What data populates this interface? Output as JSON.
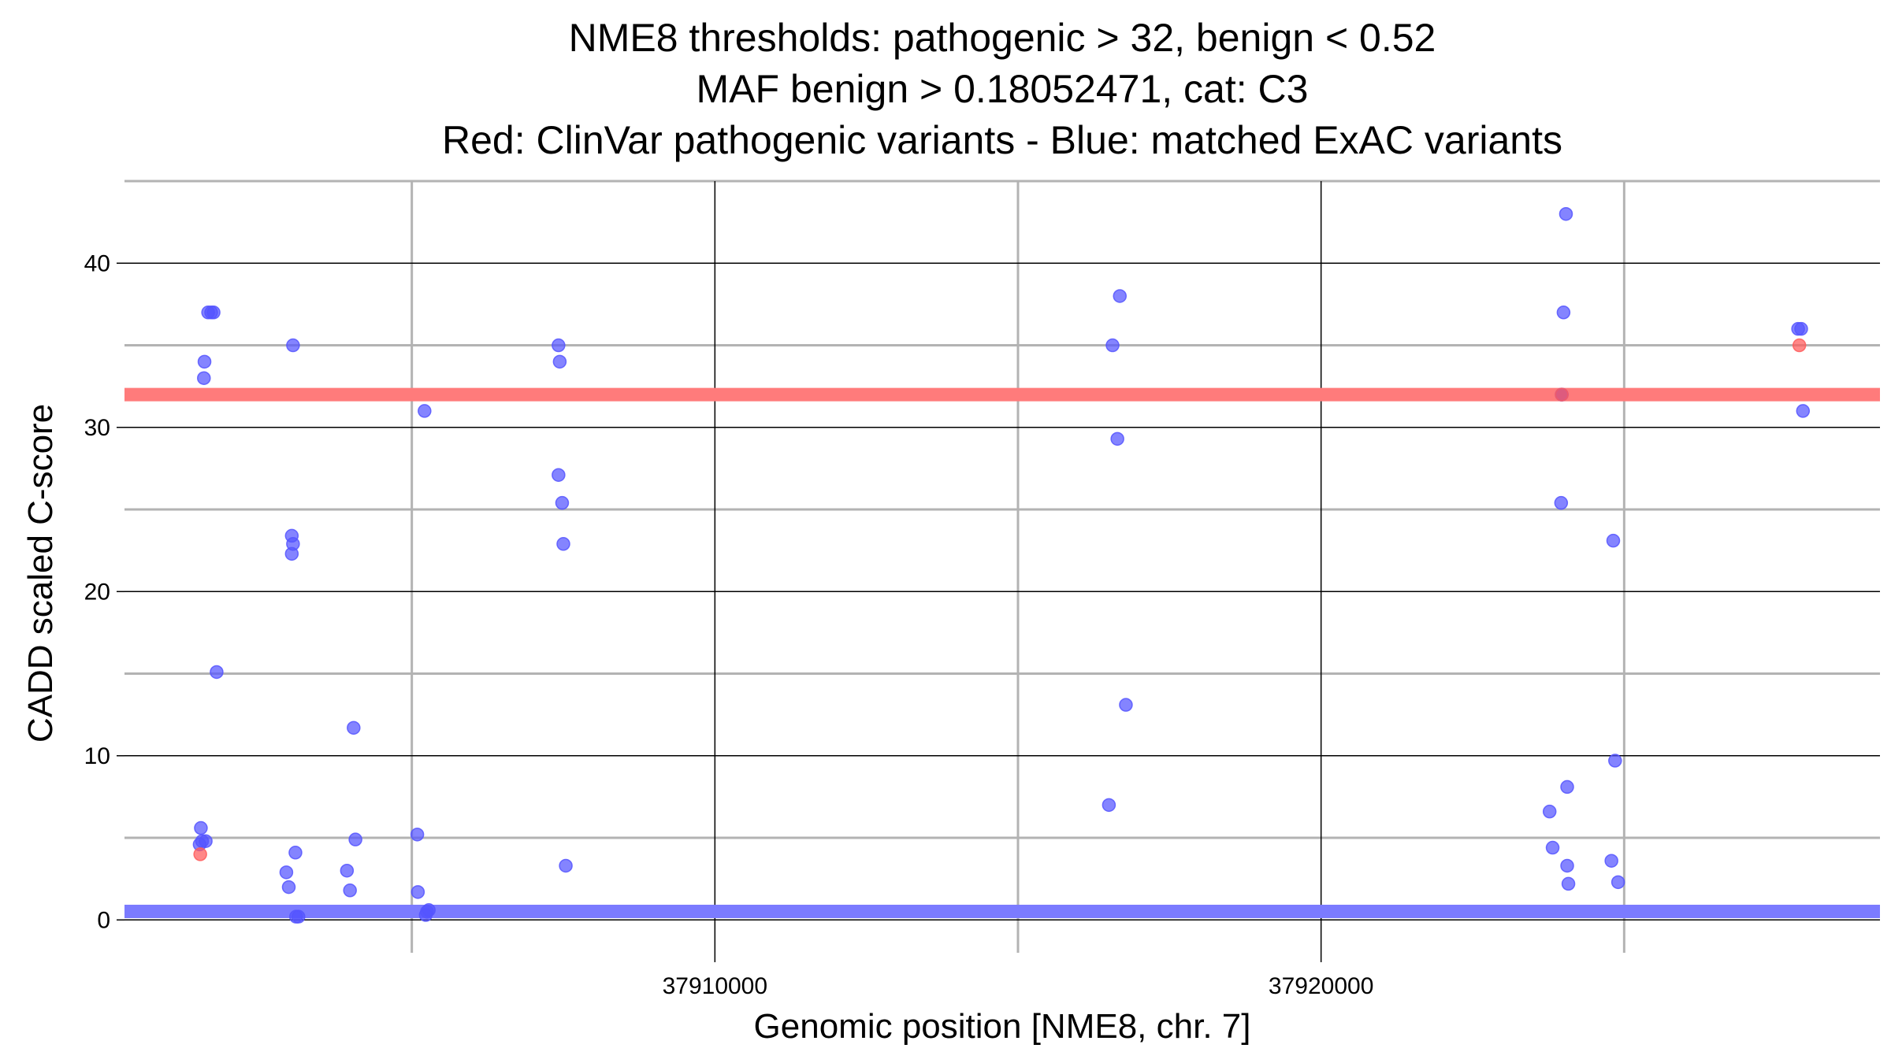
{
  "chart_data": {
    "type": "scatter",
    "title_lines": [
      "NME8 thresholds: pathogenic > 32, benign < 0.52",
      "MAF benign > 0.18052471, cat: C3",
      "Red: ClinVar pathogenic variants - Blue: matched ExAC variants"
    ],
    "xlabel": "Genomic position [NME8, chr. 7]",
    "ylabel": "CADD scaled C-score",
    "xlim": [
      37900260,
      37929220
    ],
    "ylim": [
      -2,
      45
    ],
    "x_ticks": [
      37910000,
      37920000
    ],
    "x_minor_ticks": [
      37905000,
      37915000,
      37925000
    ],
    "y_ticks": [
      0,
      10,
      20,
      30,
      40
    ],
    "y_minor_ticks": [
      5,
      15,
      25,
      35
    ],
    "grid": true,
    "thresholds": [
      {
        "name": "pathogenic",
        "value": 32,
        "color": "#ff7b7b"
      },
      {
        "name": "benign",
        "value": 0.52,
        "color": "#7b7bff"
      }
    ],
    "colors": {
      "pathogenic": "#ff5a5a",
      "exac": "#5555ff"
    },
    "series": [
      {
        "key": "exac",
        "points": [
          [
            37901640,
            37
          ],
          [
            37901690,
            37
          ],
          [
            37901730,
            37
          ],
          [
            37901580,
            34
          ],
          [
            37901570,
            33
          ],
          [
            37901520,
            5.6
          ],
          [
            37901540,
            4.8
          ],
          [
            37901600,
            4.8
          ],
          [
            37901500,
            4.6
          ],
          [
            37901780,
            15.1
          ],
          [
            37903040,
            35
          ],
          [
            37903020,
            23.4
          ],
          [
            37903040,
            22.9
          ],
          [
            37903020,
            22.3
          ],
          [
            37903080,
            4.1
          ],
          [
            37902930,
            2.9
          ],
          [
            37902970,
            2.0
          ],
          [
            37903090,
            0.2
          ],
          [
            37903130,
            0.2
          ],
          [
            37904040,
            11.7
          ],
          [
            37904070,
            4.9
          ],
          [
            37903930,
            3.0
          ],
          [
            37903980,
            1.8
          ],
          [
            37905210,
            31
          ],
          [
            37905090,
            5.2
          ],
          [
            37905100,
            1.7
          ],
          [
            37905250,
            0.5
          ],
          [
            37905280,
            0.6
          ],
          [
            37905230,
            0.3
          ],
          [
            37907420,
            35
          ],
          [
            37907440,
            34
          ],
          [
            37907420,
            27.1
          ],
          [
            37907480,
            25.4
          ],
          [
            37907500,
            22.9
          ],
          [
            37907540,
            3.3
          ],
          [
            37916560,
            35
          ],
          [
            37916680,
            38
          ],
          [
            37916640,
            29.3
          ],
          [
            37916780,
            13.1
          ],
          [
            37916500,
            7.0
          ],
          [
            37924040,
            43
          ],
          [
            37924000,
            37
          ],
          [
            37923970,
            32
          ],
          [
            37923960,
            25.4
          ],
          [
            37924060,
            8.1
          ],
          [
            37923770,
            6.6
          ],
          [
            37923820,
            4.4
          ],
          [
            37924060,
            3.3
          ],
          [
            37924080,
            2.2
          ],
          [
            37924790,
            3.6
          ],
          [
            37924850,
            9.7
          ],
          [
            37924820,
            23.1
          ],
          [
            37924900,
            2.3
          ],
          [
            37927870,
            36
          ],
          [
            37927920,
            36
          ],
          [
            37927950,
            31
          ]
        ]
      },
      {
        "key": "pathogenic",
        "points": [
          [
            37901510,
            4.0
          ],
          [
            37923970,
            32
          ],
          [
            37927890,
            35
          ]
        ]
      }
    ]
  }
}
